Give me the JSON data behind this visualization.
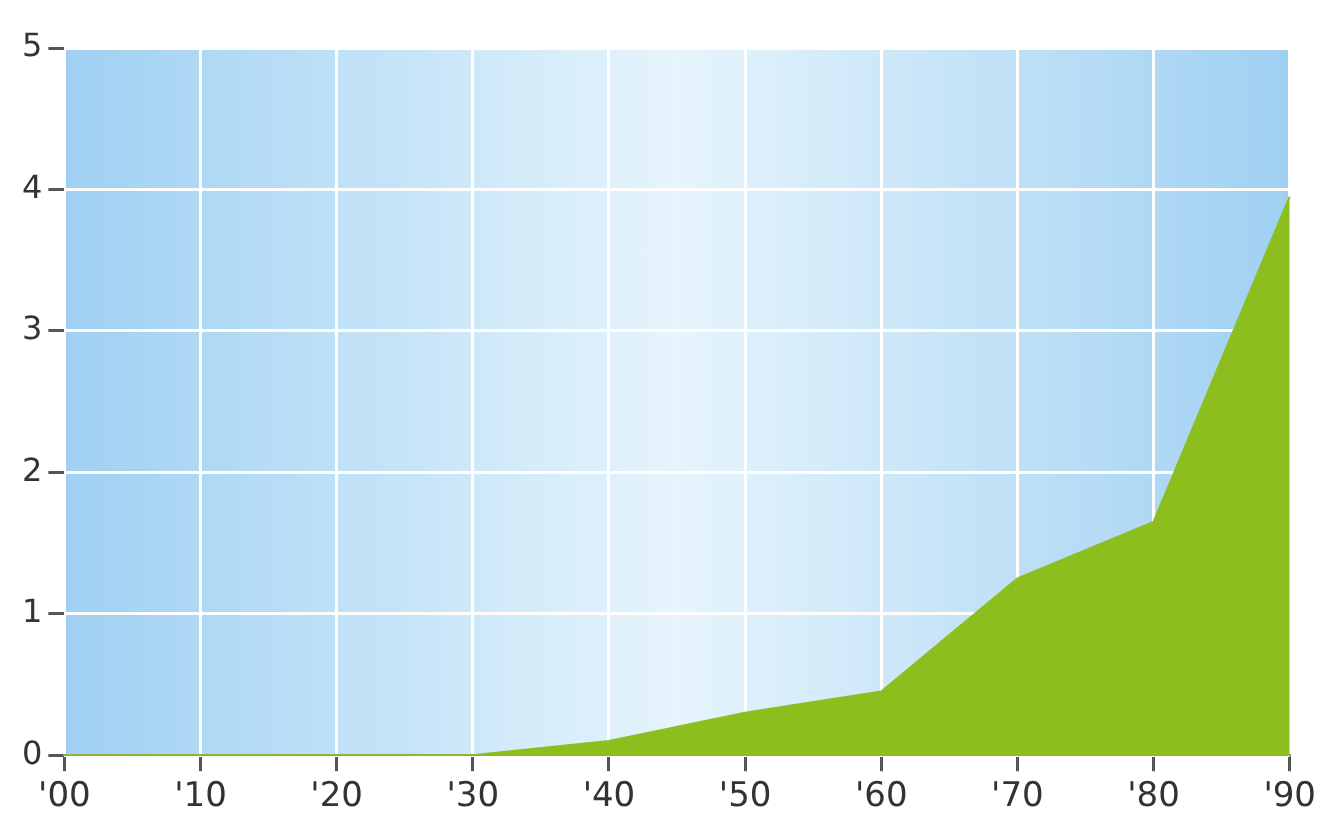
{
  "chart_data": {
    "type": "area",
    "categories": [
      "'00",
      "'10",
      "'20",
      "'30",
      "'40",
      "'50",
      "'60",
      "'70",
      "'80",
      "'90"
    ],
    "series": [
      {
        "color": "#8cbf1e",
        "values": [
          0,
          0,
          0,
          0,
          0.1,
          0.3,
          0.45,
          1.25,
          1.65,
          3.95
        ]
      }
    ],
    "ylim": [
      0,
      5
    ],
    "yticks": [
      0,
      1,
      2,
      3,
      4,
      5
    ],
    "grid": true,
    "legend": false
  }
}
